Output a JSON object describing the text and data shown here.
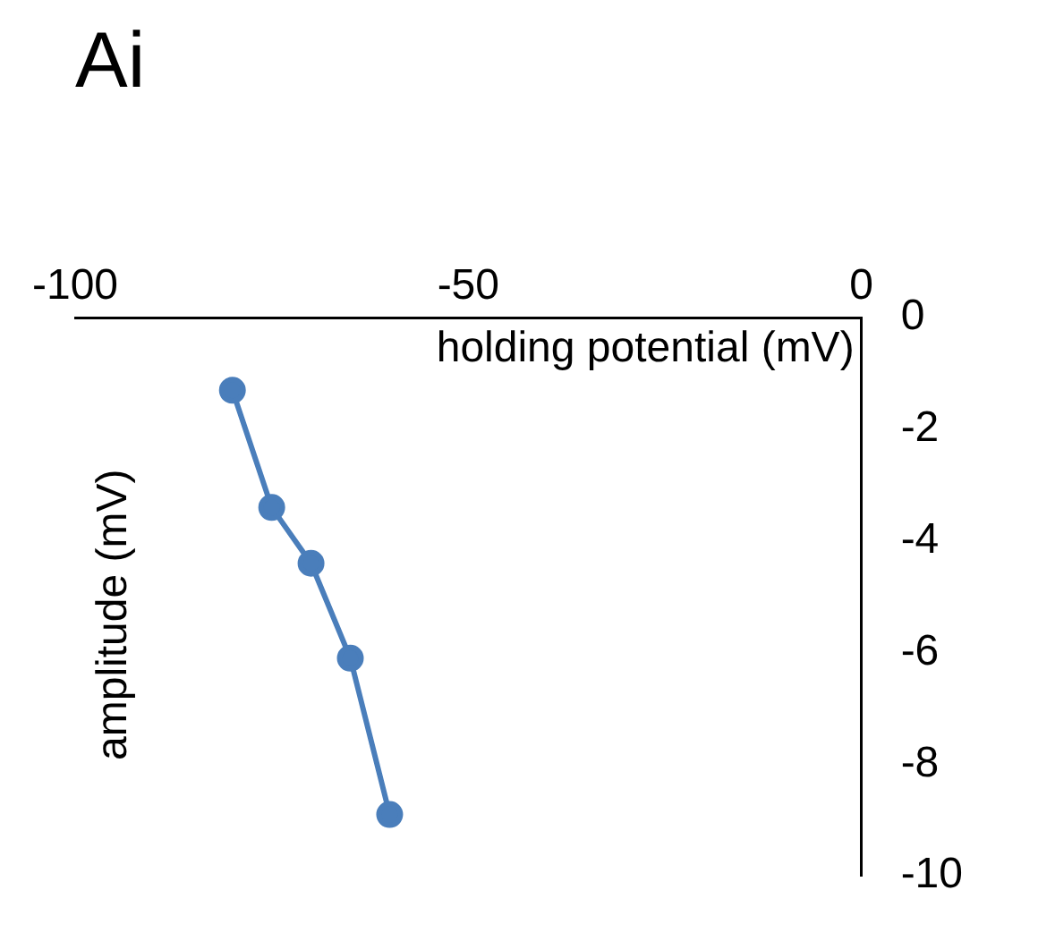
{
  "chart_data": {
    "type": "line",
    "title": "Ai",
    "xlabel": "holding potential (mV)",
    "ylabel": "amplitude (mV)",
    "x": [
      -80,
      -75,
      -70,
      -65,
      -60
    ],
    "series": [
      {
        "color": "#4a7ebb",
        "values": [
          -1.3,
          -3.4,
          -4.4,
          -6.1,
          -8.9
        ]
      }
    ],
    "xlim": [
      -100,
      0
    ],
    "xticks": [
      -100,
      -50,
      0
    ],
    "ylim": [
      -10,
      0
    ],
    "yticks": [
      -10,
      -8,
      -6,
      -4,
      -2,
      0
    ],
    "grid": false,
    "legend": false,
    "marker": "circle",
    "line_style": "solid"
  }
}
